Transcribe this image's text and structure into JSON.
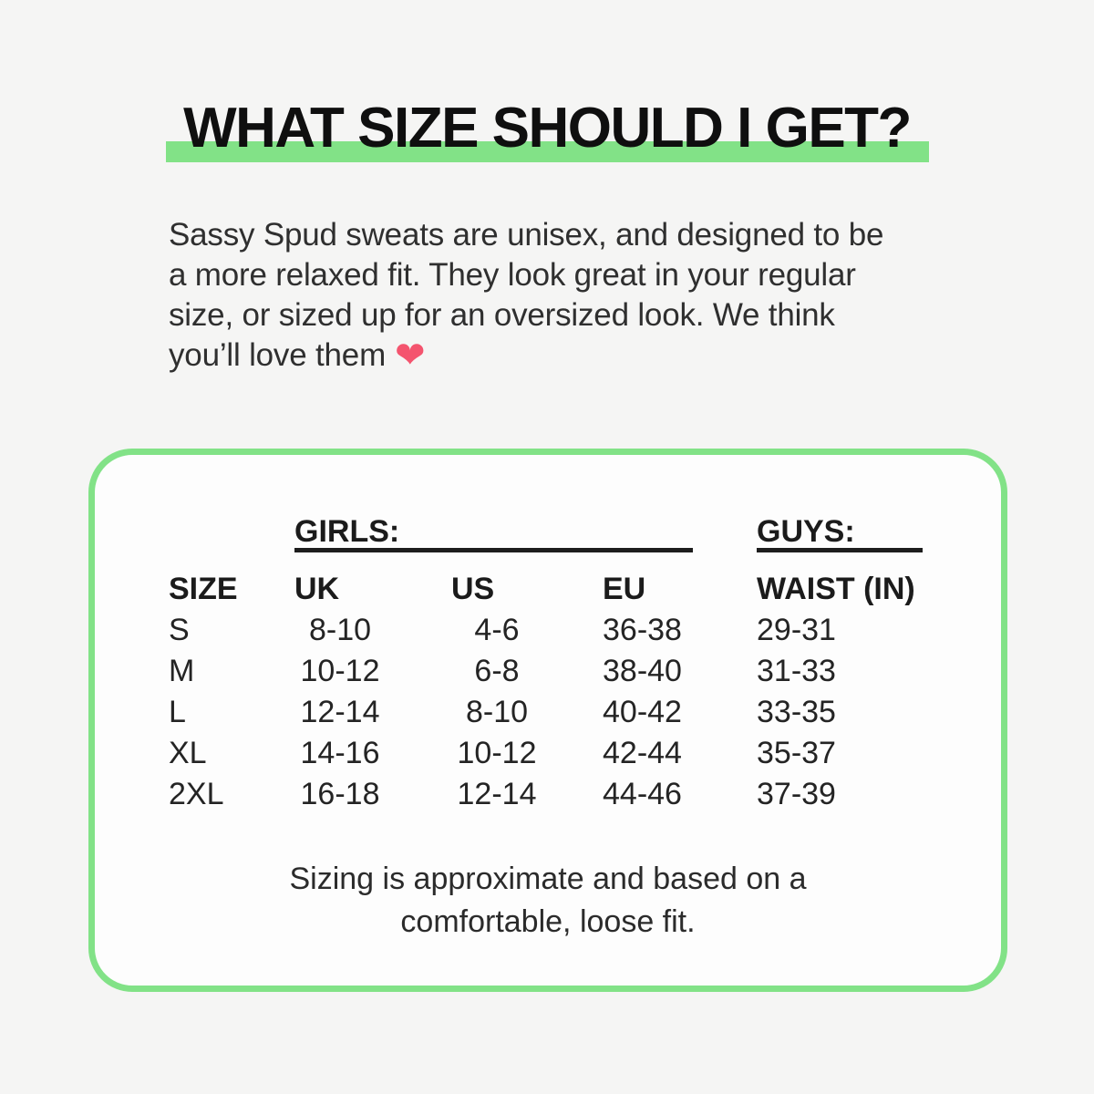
{
  "theme": {
    "page_bg": "#f5f5f4",
    "card_bg": "#fdfdfd",
    "green": "#82e287",
    "underline_color": "#1d1d1d",
    "heart_color": "#f4546e",
    "text_dark": "#161616",
    "text_body": "#2f2f2f"
  },
  "title": {
    "text": "WHAT SIZE SHOULD I GET?"
  },
  "intro": {
    "lines": [
      "Sassy Spud sweats are unisex, and designed to be",
      "a more relaxed fit. They look great in your regular",
      "size, or sized up for an oversized look. We think",
      "you’ll love them"
    ],
    "heart_icon": "❤"
  },
  "size_chart": {
    "girls_label": "GIRLS:",
    "guys_label": "GUYS:",
    "columns": [
      "SIZE",
      "UK",
      "US",
      "EU",
      "WAIST (IN)"
    ],
    "rows": [
      {
        "size": "S",
        "uk": "8-10",
        "us": "4-6",
        "eu": "36-38",
        "waist": "29-31"
      },
      {
        "size": "M",
        "uk": "10-12",
        "us": "6-8",
        "eu": "38-40",
        "waist": "31-33"
      },
      {
        "size": "L",
        "uk": "12-14",
        "us": "8-10",
        "eu": "40-42",
        "waist": "33-35"
      },
      {
        "size": "XL",
        "uk": "14-16",
        "us": "10-12",
        "eu": "42-44",
        "waist": "35-37"
      },
      {
        "size": "2XL",
        "uk": "16-18",
        "us": "12-14",
        "eu": "44-46",
        "waist": "37-39"
      }
    ],
    "note_lines": [
      "Sizing is approximate and based on a",
      "comfortable, loose fit."
    ]
  }
}
